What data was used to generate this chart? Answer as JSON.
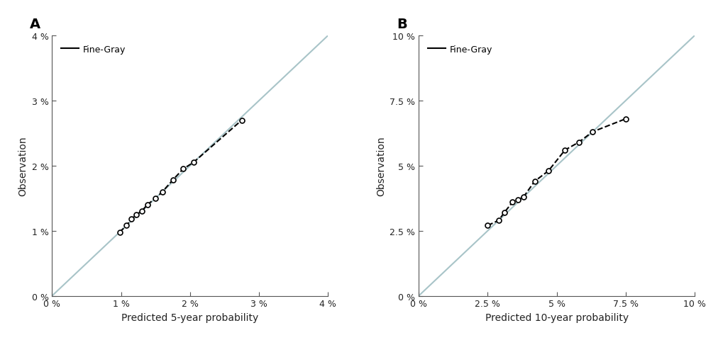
{
  "panel_A": {
    "label": "A",
    "xlabel": "Predicted 5-year probability",
    "ylabel": "Observation",
    "xlim": [
      0,
      0.04
    ],
    "ylim": [
      0,
      0.04
    ],
    "xticks": [
      0,
      0.01,
      0.02,
      0.03,
      0.04
    ],
    "yticks": [
      0,
      0.01,
      0.02,
      0.03,
      0.04
    ],
    "diagonal_color": "#a8c4c8",
    "curve_x": [
      0.0098,
      0.0108,
      0.0115,
      0.0122,
      0.013,
      0.0138,
      0.015,
      0.016,
      0.0175,
      0.019,
      0.0205,
      0.0275
    ],
    "curve_y": [
      0.0098,
      0.0108,
      0.0118,
      0.0125,
      0.013,
      0.014,
      0.015,
      0.016,
      0.0178,
      0.0195,
      0.0205,
      0.027
    ],
    "curve_color": "#000000",
    "legend_label": "Fine-Gray"
  },
  "panel_B": {
    "label": "B",
    "xlabel": "Predicted 10-year probability",
    "ylabel": "Observation",
    "xlim": [
      0,
      0.1
    ],
    "ylim": [
      0,
      0.1
    ],
    "xticks": [
      0,
      0.025,
      0.05,
      0.075,
      0.1
    ],
    "yticks": [
      0,
      0.025,
      0.05,
      0.075,
      0.1
    ],
    "diagonal_color": "#a8c4c8",
    "curve_x": [
      0.025,
      0.029,
      0.031,
      0.034,
      0.036,
      0.038,
      0.042,
      0.047,
      0.053,
      0.058,
      0.063,
      0.075
    ],
    "curve_y": [
      0.027,
      0.029,
      0.032,
      0.036,
      0.037,
      0.038,
      0.044,
      0.048,
      0.056,
      0.059,
      0.063,
      0.068
    ],
    "curve_color": "#000000",
    "legend_label": "Fine-Gray"
  },
  "bg_color": "#ffffff",
  "fig_width": 10.2,
  "fig_height": 4.81,
  "dpi": 100
}
